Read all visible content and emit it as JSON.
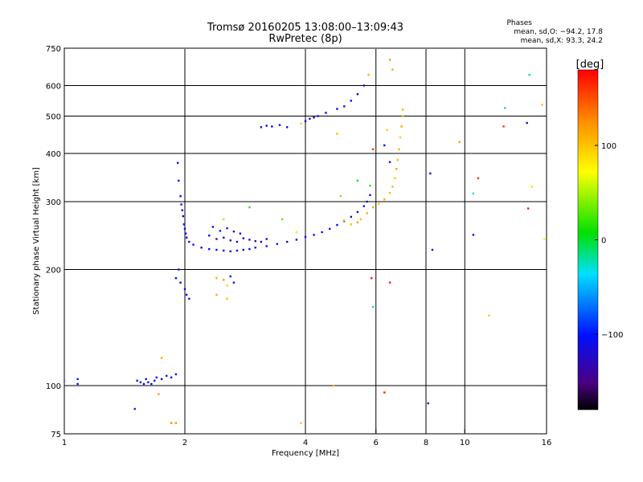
{
  "title": {
    "line1": "Tromsø 20160205 13:08:00–13:09:43",
    "line2": "RwPretec (8p)"
  },
  "phase_info": {
    "heading": "Phases",
    "o_line": "mean, sd,O: −94.2, 17.8",
    "x_line": "mean, sd,X:  93.3, 24.2"
  },
  "colorbar": {
    "unit": "[deg]",
    "min": -180,
    "max": 180,
    "ticks": [
      100,
      0,
      -100
    ],
    "tick_labels": [
      "100",
      "0",
      "−100"
    ]
  },
  "chart_data": {
    "type": "scatter",
    "xlabel": "Frequency [MHz]",
    "ylabel": "Stationary phase Virtual Height [km]",
    "x_scale": "log",
    "y_scale": "log",
    "xlim": [
      1,
      16
    ],
    "ylim": [
      75,
      750
    ],
    "x_ticks": [
      1,
      2,
      4,
      6,
      8,
      10,
      16
    ],
    "x_tick_labels": [
      "1",
      "2",
      "4",
      "6",
      "8",
      "10",
      "16"
    ],
    "x_grid": [
      2,
      4,
      6,
      8,
      10
    ],
    "y_ticks": [
      75,
      100,
      200,
      300,
      400,
      500,
      600,
      750
    ],
    "y_tick_labels": [
      "75",
      "100",
      "200",
      "300",
      "400",
      "500",
      "600",
      "750"
    ],
    "y_grid": [
      100,
      200,
      300,
      400,
      500,
      600
    ],
    "grid": true,
    "color_by": "phase [deg]",
    "points": [
      [
        1.0,
        103,
        -105
      ],
      [
        1.08,
        101,
        -110
      ],
      [
        1.08,
        104,
        -100
      ],
      [
        1.52,
        103,
        -110
      ],
      [
        1.55,
        102,
        -105
      ],
      [
        1.58,
        101,
        -100
      ],
      [
        1.6,
        104,
        -115
      ],
      [
        1.62,
        102,
        -105
      ],
      [
        1.65,
        101,
        -110
      ],
      [
        1.68,
        103,
        -100
      ],
      [
        1.7,
        105,
        -108
      ],
      [
        1.75,
        104,
        -112
      ],
      [
        1.8,
        106,
        -104
      ],
      [
        1.85,
        105,
        -110
      ],
      [
        1.9,
        107,
        -106
      ],
      [
        1.5,
        87,
        -95
      ],
      [
        1.72,
        95,
        120
      ],
      [
        1.75,
        118,
        115
      ],
      [
        1.85,
        80,
        130
      ],
      [
        1.9,
        80,
        125
      ],
      [
        1.92,
        378,
        -110
      ],
      [
        1.93,
        340,
        -105
      ],
      [
        1.95,
        310,
        -120
      ],
      [
        1.96,
        295,
        -100
      ],
      [
        1.97,
        285,
        -110
      ],
      [
        1.98,
        275,
        -115
      ],
      [
        1.99,
        262,
        -105
      ],
      [
        2.0,
        255,
        -110
      ],
      [
        2.01,
        248,
        -120
      ],
      [
        2.02,
        242,
        -100
      ],
      [
        2.05,
        236,
        -108
      ],
      [
        2.1,
        232,
        -112
      ],
      [
        2.2,
        228,
        -110
      ],
      [
        2.3,
        226,
        -105
      ],
      [
        2.4,
        225,
        -112
      ],
      [
        2.5,
        224,
        -108
      ],
      [
        2.6,
        223,
        -110
      ],
      [
        2.7,
        224,
        -115
      ],
      [
        2.8,
        225,
        -105
      ],
      [
        2.9,
        226,
        -110
      ],
      [
        3.0,
        228,
        -112
      ],
      [
        3.2,
        230,
        -108
      ],
      [
        3.4,
        233,
        -110
      ],
      [
        3.6,
        236,
        -105
      ],
      [
        3.8,
        239,
        -112
      ],
      [
        4.0,
        243,
        -108
      ],
      [
        4.2,
        246,
        -110
      ],
      [
        4.4,
        250,
        -115
      ],
      [
        4.6,
        255,
        -105
      ],
      [
        4.8,
        261,
        -110
      ],
      [
        5.0,
        267,
        -108
      ],
      [
        5.2,
        274,
        -112
      ],
      [
        5.4,
        282,
        -110
      ],
      [
        5.6,
        292,
        -105
      ],
      [
        5.7,
        300,
        -110
      ],
      [
        5.8,
        312,
        -115
      ],
      [
        2.3,
        245,
        -110
      ],
      [
        2.4,
        240,
        -140
      ],
      [
        2.5,
        242,
        -120
      ],
      [
        2.6,
        238,
        -150
      ],
      [
        2.7,
        236,
        -110
      ],
      [
        2.8,
        241,
        -130
      ],
      [
        2.9,
        239,
        -100
      ],
      [
        3.0,
        237,
        -145
      ],
      [
        3.1,
        236,
        -120
      ],
      [
        3.2,
        240,
        -110
      ],
      [
        2.35,
        258,
        -120
      ],
      [
        2.45,
        252,
        -100
      ],
      [
        2.55,
        256,
        -115
      ],
      [
        2.65,
        251,
        -105
      ],
      [
        2.75,
        248,
        -110
      ],
      [
        1.9,
        190,
        -110
      ],
      [
        1.95,
        185,
        -100
      ],
      [
        2.0,
        178,
        -120
      ],
      [
        2.02,
        172,
        -105
      ],
      [
        2.05,
        168,
        -110
      ],
      [
        1.93,
        200,
        -115
      ],
      [
        2.4,
        190,
        110
      ],
      [
        2.5,
        188,
        120
      ],
      [
        2.55,
        182,
        95
      ],
      [
        2.6,
        192,
        -105
      ],
      [
        2.65,
        185,
        -110
      ],
      [
        2.4,
        172,
        115
      ],
      [
        2.55,
        168,
        105
      ],
      [
        3.1,
        468,
        -110
      ],
      [
        3.2,
        472,
        -105
      ],
      [
        3.3,
        470,
        -115
      ],
      [
        3.45,
        474,
        -108
      ],
      [
        3.6,
        468,
        -110
      ],
      [
        3.9,
        478,
        90
      ],
      [
        4.0,
        485,
        -120
      ],
      [
        4.1,
        492,
        -110
      ],
      [
        4.2,
        496,
        -105
      ],
      [
        4.3,
        500,
        -112
      ],
      [
        4.5,
        510,
        -108
      ],
      [
        4.8,
        522,
        -110
      ],
      [
        5.0,
        530,
        -115
      ],
      [
        5.2,
        548,
        -105
      ],
      [
        5.4,
        570,
        -110
      ],
      [
        5.6,
        600,
        -112
      ],
      [
        5.75,
        640,
        110
      ],
      [
        5.0,
        268,
        110
      ],
      [
        5.2,
        262,
        100
      ],
      [
        5.4,
        265,
        115
      ],
      [
        5.5,
        270,
        105
      ],
      [
        5.7,
        280,
        110
      ],
      [
        5.9,
        290,
        120
      ],
      [
        6.1,
        296,
        100
      ],
      [
        6.3,
        304,
        115
      ],
      [
        6.5,
        316,
        105
      ],
      [
        6.6,
        328,
        110
      ],
      [
        6.7,
        345,
        100
      ],
      [
        6.75,
        365,
        115
      ],
      [
        6.8,
        385,
        105
      ],
      [
        6.85,
        410,
        110
      ],
      [
        6.9,
        440,
        100
      ],
      [
        6.95,
        470,
        115
      ],
      [
        7.0,
        500,
        105
      ],
      [
        7.0,
        520,
        110
      ],
      [
        6.3,
        420,
        -110
      ],
      [
        6.5,
        380,
        -115
      ],
      [
        6.4,
        460,
        95
      ],
      [
        6.6,
        660,
        115
      ],
      [
        6.5,
        700,
        120
      ],
      [
        5.9,
        410,
        160
      ],
      [
        5.85,
        190,
        175
      ],
      [
        6.5,
        185,
        170
      ],
      [
        6.3,
        96,
        170
      ],
      [
        5.9,
        160,
        -30
      ],
      [
        5.8,
        330,
        20
      ],
      [
        5.4,
        340,
        10
      ],
      [
        4.9,
        310,
        40
      ],
      [
        4.8,
        450,
        105
      ],
      [
        3.5,
        270,
        30
      ],
      [
        2.5,
        270,
        100
      ],
      [
        2.9,
        290,
        20
      ],
      [
        3.8,
        250,
        60
      ],
      [
        8.2,
        355,
        -110
      ],
      [
        8.3,
        225,
        -105
      ],
      [
        9.7,
        428,
        115
      ],
      [
        10.5,
        315,
        -30
      ],
      [
        10.8,
        345,
        160
      ],
      [
        11.5,
        152,
        95
      ],
      [
        10.5,
        246,
        -100
      ],
      [
        12.6,
        525,
        -30
      ],
      [
        12.5,
        470,
        160
      ],
      [
        14.3,
        480,
        -130
      ],
      [
        14.4,
        288,
        170
      ],
      [
        14.5,
        640,
        -20
      ],
      [
        14.7,
        328,
        60
      ],
      [
        15.6,
        535,
        100
      ],
      [
        15.8,
        240,
        80
      ],
      [
        3.9,
        80,
        100
      ],
      [
        4.7,
        100,
        110
      ],
      [
        8.1,
        90,
        -100
      ]
    ]
  }
}
